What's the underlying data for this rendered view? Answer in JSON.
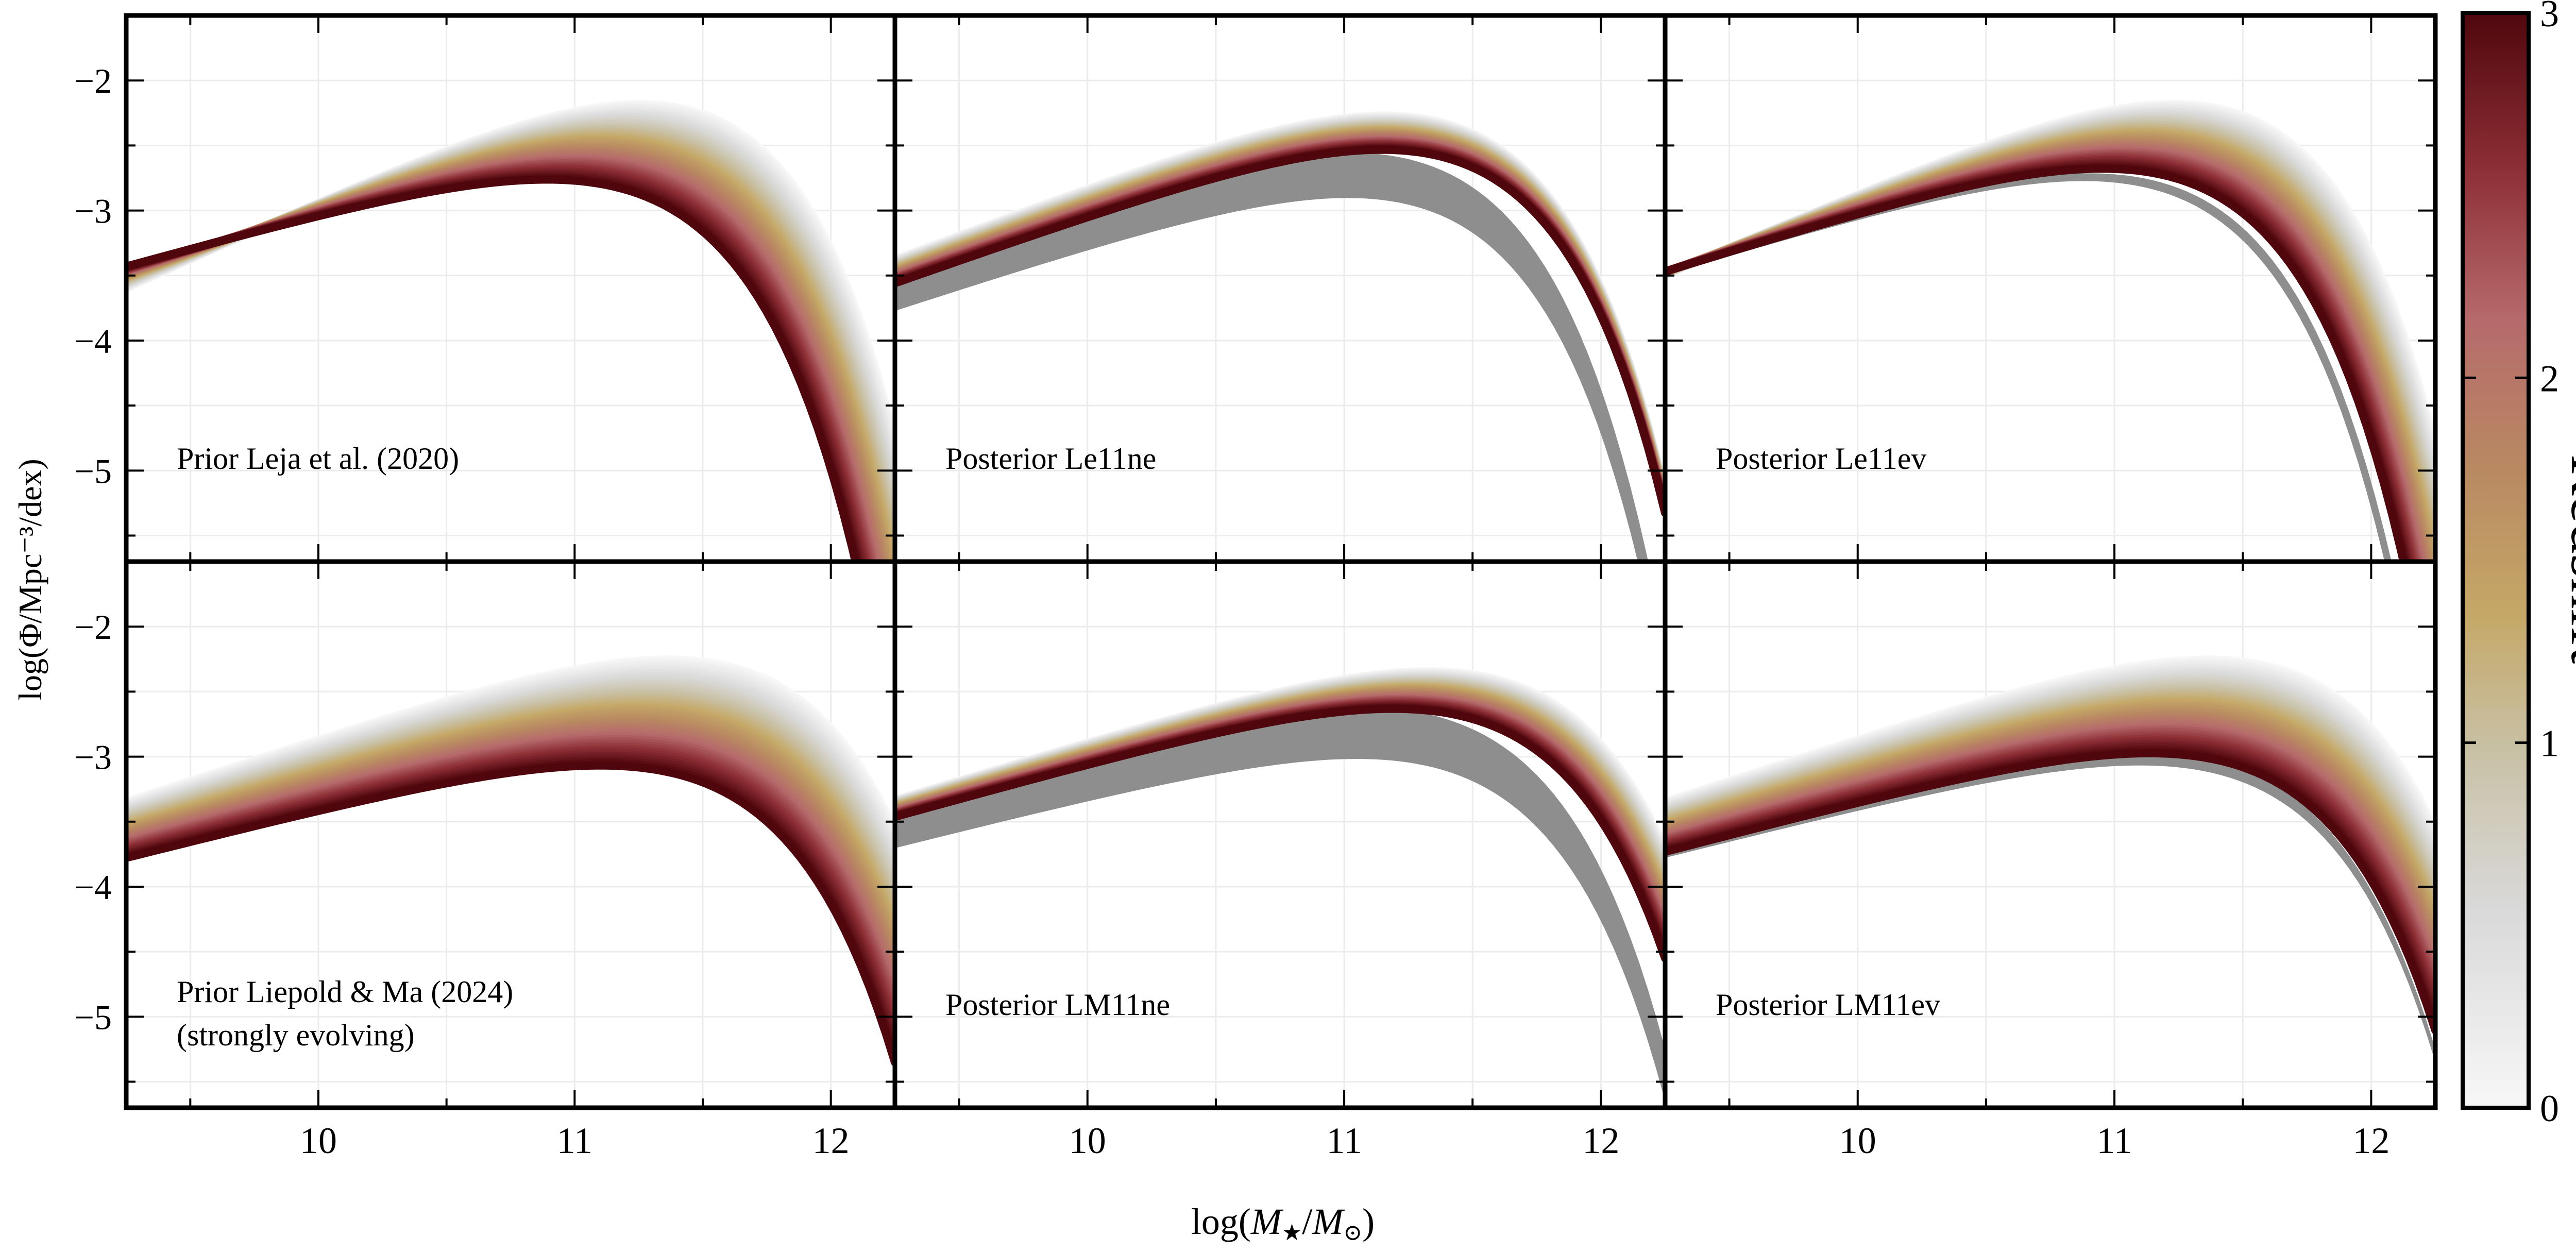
{
  "figure": {
    "ylabel": "log(Φ/Mpc⁻³/dex)",
    "xlabel_prefix": "log(",
    "xlabel_M1": "M",
    "xlabel_star": "★",
    "xlabel_sep": "/",
    "xlabel_M2": "M",
    "xlabel_sun": "⊙",
    "xlabel_suffix": ")"
  },
  "colorbar": {
    "label": "Redshift",
    "ticks": [
      "0",
      "1",
      "2",
      "3"
    ],
    "range": [
      0,
      3
    ],
    "colors": {
      "low": "#f4f4f4",
      "mid_gray": "#c4c2bd",
      "tan": "#c9ae6a",
      "rose": "#b46a6a",
      "dark": "#5a0a10"
    }
  },
  "chart_data": [
    {
      "type": "area",
      "panel": "top-left",
      "label_lines": [
        "Prior Leja et al. (2020)"
      ],
      "xlim": [
        9.25,
        12.25
      ],
      "ylim": [
        -5.7,
        -1.5
      ],
      "x_ticks": [
        "10",
        "11",
        "12"
      ],
      "y_ticks": [
        "−2",
        "−3",
        "−4",
        "−5"
      ],
      "model": {
        "z0": {
          "logphi": -1.75,
          "mstar": 11.3,
          "alpha": -0.1
        },
        "z3": {
          "logphi": -2.38,
          "mstar": 11.15,
          "alpha": -0.45
        }
      },
      "gray_band": null
    },
    {
      "type": "area",
      "panel": "top-middle",
      "label_lines": [
        "Posterior Le11ne"
      ],
      "xlim": [
        9.25,
        12.25
      ],
      "ylim": [
        -5.7,
        -1.5
      ],
      "x_ticks": [
        "10",
        "11",
        "12"
      ],
      "y_ticks": [
        "−2",
        "−3",
        "−4",
        "−5"
      ],
      "model": {
        "z0": {
          "logphi": -1.85,
          "mstar": 11.28,
          "alpha": -0.25
        },
        "z3": {
          "logphi": -2.12,
          "mstar": 11.3,
          "alpha": -0.3
        }
      },
      "gray_band": {
        "top": {
          "logphi": -2.15,
          "mstar": 11.2,
          "alpha": -0.35
        },
        "bottom": {
          "logphi": -2.5,
          "mstar": 11.2,
          "alpha": -0.35
        }
      }
    },
    {
      "type": "area",
      "panel": "top-right",
      "label_lines": [
        "Posterior Le11ev"
      ],
      "xlim": [
        9.25,
        12.25
      ],
      "ylim": [
        -5.7,
        -1.5
      ],
      "x_ticks": [
        "10",
        "11",
        "12"
      ],
      "y_ticks": [
        "−2",
        "−3",
        "−4",
        "−5"
      ],
      "model": {
        "z0": {
          "logphi": -1.75,
          "mstar": 11.3,
          "alpha": -0.15
        },
        "z3": {
          "logphi": -2.28,
          "mstar": 11.16,
          "alpha": -0.38
        }
      },
      "gray_band": {
        "top": {
          "logphi": -2.32,
          "mstar": 11.12,
          "alpha": -0.4
        },
        "bottom": {
          "logphi": -2.38,
          "mstar": 11.1,
          "alpha": -0.4
        }
      }
    },
    {
      "type": "area",
      "panel": "bottom-left",
      "label_lines": [
        "Prior Liepold & Ma (2024)",
        "(strongly evolving)"
      ],
      "xlim": [
        9.25,
        12.25
      ],
      "ylim": [
        -5.7,
        -1.5
      ],
      "x_ticks": [
        "10",
        "11",
        "12"
      ],
      "y_ticks": [
        "−2",
        "−3",
        "−4",
        "−5"
      ],
      "model": {
        "z0": {
          "logphi": -1.85,
          "mstar": 11.55,
          "alpha": -0.35
        },
        "z3": {
          "logphi": -2.7,
          "mstar": 11.4,
          "alpha": -0.5
        }
      },
      "gray_band": null
    },
    {
      "type": "area",
      "panel": "bottom-middle",
      "label_lines": [
        "Posterior LM11ne"
      ],
      "xlim": [
        9.25,
        12.25
      ],
      "ylim": [
        -5.7,
        -1.5
      ],
      "x_ticks": [
        "10",
        "11",
        "12"
      ],
      "y_ticks": [
        "−2",
        "−3",
        "−4",
        "−5"
      ],
      "model": {
        "z0": {
          "logphi": -1.95,
          "mstar": 11.55,
          "alpha": -0.4
        },
        "z3": {
          "logphi": -2.25,
          "mstar": 11.45,
          "alpha": -0.45
        }
      },
      "gray_band": {
        "top": {
          "logphi": -2.25,
          "mstar": 11.35,
          "alpha": -0.5
        },
        "bottom": {
          "logphi": -2.65,
          "mstar": 11.35,
          "alpha": -0.5
        }
      }
    },
    {
      "type": "area",
      "panel": "bottom-right",
      "label_lines": [
        "Posterior LM11ev"
      ],
      "xlim": [
        9.25,
        12.25
      ],
      "ylim": [
        -5.7,
        -1.5
      ],
      "x_ticks": [
        "10",
        "11",
        "12"
      ],
      "y_ticks": [
        "−2",
        "−3",
        "−4",
        "−5"
      ],
      "model": {
        "z0": {
          "logphi": -1.85,
          "mstar": 11.55,
          "alpha": -0.35
        },
        "z3": {
          "logphi": -2.6,
          "mstar": 11.42,
          "alpha": -0.48
        }
      },
      "gray_band": {
        "top": {
          "logphi": -2.6,
          "mstar": 11.4,
          "alpha": -0.5
        },
        "bottom": {
          "logphi": -2.7,
          "mstar": 11.4,
          "alpha": -0.5
        }
      }
    }
  ]
}
